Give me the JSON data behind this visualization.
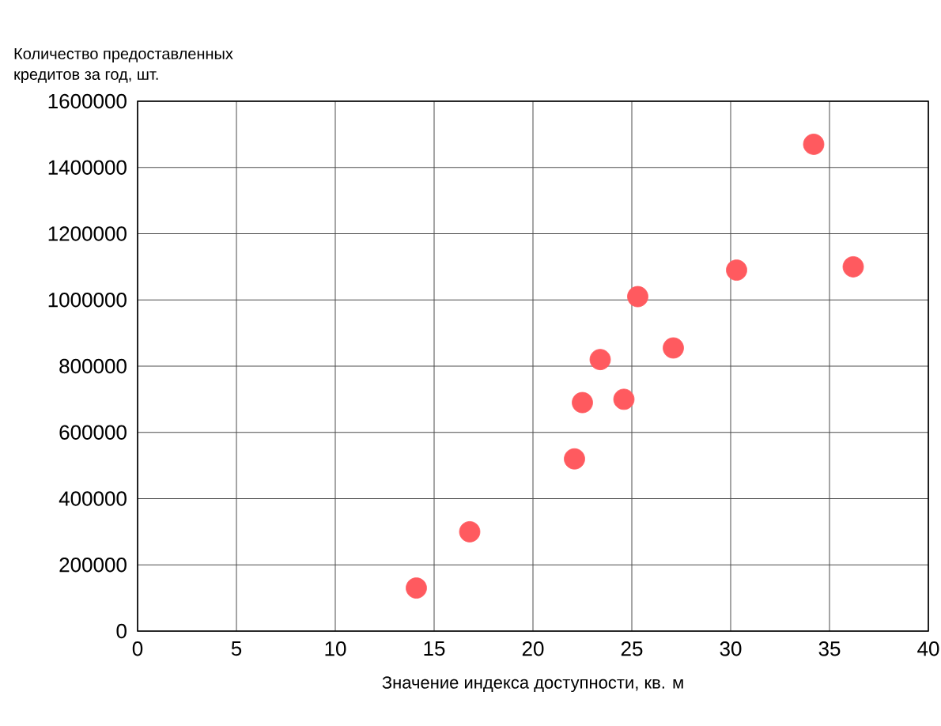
{
  "chart_data": {
    "type": "scatter",
    "ylabel": "Количество предоставленных\nкредитов за год, шт.",
    "xlabel": "Значение индекса доступности, кв. м",
    "x": [
      14.1,
      16.8,
      22.1,
      22.5,
      24.6,
      23.4,
      25.3,
      27.1,
      30.3,
      34.2,
      36.2
    ],
    "values": [
      130000,
      300000,
      520000,
      690000,
      700000,
      820000,
      1010000,
      855000,
      1090000,
      1470000,
      1100000
    ],
    "color": "#ff5a5f",
    "grid": true,
    "xlim": [
      0,
      40
    ],
    "xticks": [
      0,
      5,
      10,
      15,
      20,
      25,
      30,
      35,
      40
    ],
    "ylim": [
      0,
      1600000
    ],
    "yticks": [
      0,
      200000,
      400000,
      600000,
      800000,
      1000000,
      1200000,
      1400000,
      1600000
    ]
  }
}
